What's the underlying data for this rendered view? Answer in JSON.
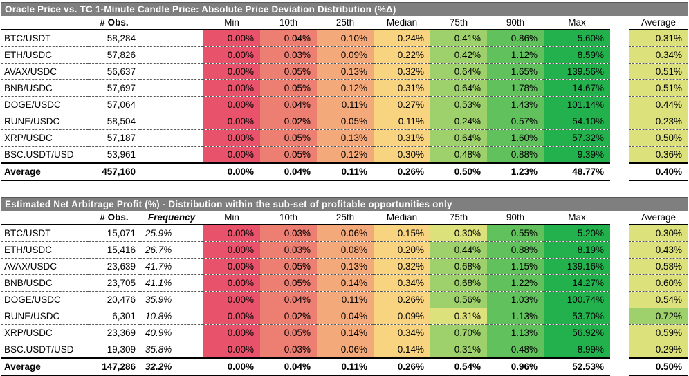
{
  "colors": {
    "title_bg": "#7F7F7F",
    "title_fg": "#FFFFFF",
    "scale_low": "#E8536B",
    "scale_mid": "#FBE983",
    "scale_high": "#23B14E"
  },
  "tables": [
    {
      "title": "Oracle Price vs. TC 1-Minute Candle Price: Absolute Price Deviation Distribution (%Δ)",
      "headers": {
        "obs": "# Obs.",
        "freq": "",
        "min": "Min",
        "p10": "10th",
        "p25": "25th",
        "median": "Median",
        "p75": "75th",
        "p90": "90th",
        "max": "Max",
        "avg": "Average"
      },
      "rows": [
        {
          "label": "BTC/USDT",
          "obs": "58,284",
          "freq": "",
          "values": [
            "0.00%",
            "0.04%",
            "0.10%",
            "0.24%",
            "0.41%",
            "0.86%",
            "5.60%",
            "0.31%"
          ]
        },
        {
          "label": "ETH/USDC",
          "obs": "57,826",
          "freq": "",
          "values": [
            "0.00%",
            "0.03%",
            "0.09%",
            "0.22%",
            "0.42%",
            "1.12%",
            "8.59%",
            "0.34%"
          ]
        },
        {
          "label": "AVAX/USDC",
          "obs": "56,637",
          "freq": "",
          "values": [
            "0.00%",
            "0.05%",
            "0.13%",
            "0.32%",
            "0.64%",
            "1.65%",
            "139.56%",
            "0.51%"
          ]
        },
        {
          "label": "BNB/USDC",
          "obs": "57,697",
          "freq": "",
          "values": [
            "0.00%",
            "0.05%",
            "0.12%",
            "0.31%",
            "0.64%",
            "1.78%",
            "14.67%",
            "0.51%"
          ]
        },
        {
          "label": "DOGE/USDC",
          "obs": "57,064",
          "freq": "",
          "values": [
            "0.00%",
            "0.04%",
            "0.11%",
            "0.27%",
            "0.53%",
            "1.43%",
            "101.14%",
            "0.44%"
          ]
        },
        {
          "label": "RUNE/USDC",
          "obs": "58,504",
          "freq": "",
          "values": [
            "0.00%",
            "0.02%",
            "0.05%",
            "0.11%",
            "0.24%",
            "0.57%",
            "54.10%",
            "0.23%"
          ]
        },
        {
          "label": "XRP/USDC",
          "obs": "57,187",
          "freq": "",
          "values": [
            "0.00%",
            "0.05%",
            "0.13%",
            "0.31%",
            "0.64%",
            "1.60%",
            "57.32%",
            "0.50%"
          ]
        },
        {
          "label": "BSC.USDT/USD",
          "obs": "53,961",
          "freq": "",
          "values": [
            "0.00%",
            "0.05%",
            "0.12%",
            "0.30%",
            "0.48%",
            "0.88%",
            "9.39%",
            "0.36%"
          ]
        }
      ],
      "total": {
        "label": "Average",
        "obs": "457,160",
        "freq": "",
        "values": [
          "0.00%",
          "0.04%",
          "0.11%",
          "0.26%",
          "0.50%",
          "1.23%",
          "48.77%",
          "0.40%"
        ]
      }
    },
    {
      "title": "Estimated Net Arbitrage Profit (%) - Distribution within the sub-set of profitable opportunities only",
      "headers": {
        "obs": "# Obs.",
        "freq": "Frequency",
        "min": "Min",
        "p10": "10th",
        "p25": "25th",
        "median": "Median",
        "p75": "75th",
        "p90": "90th",
        "max": "Max",
        "avg": "Average"
      },
      "rows": [
        {
          "label": "BTC/USDT",
          "obs": "15,071",
          "freq": "25.9%",
          "values": [
            "0.00%",
            "0.03%",
            "0.06%",
            "0.15%",
            "0.30%",
            "0.55%",
            "5.20%",
            "0.30%"
          ]
        },
        {
          "label": "ETH/USDC",
          "obs": "15,416",
          "freq": "26.7%",
          "values": [
            "0.00%",
            "0.03%",
            "0.08%",
            "0.20%",
            "0.44%",
            "0.88%",
            "8.19%",
            "0.43%"
          ]
        },
        {
          "label": "AVAX/USDC",
          "obs": "23,639",
          "freq": "41.7%",
          "values": [
            "0.00%",
            "0.05%",
            "0.13%",
            "0.32%",
            "0.68%",
            "1.15%",
            "139.16%",
            "0.58%"
          ]
        },
        {
          "label": "BNB/USDC",
          "obs": "23,705",
          "freq": "41.1%",
          "values": [
            "0.00%",
            "0.05%",
            "0.14%",
            "0.34%",
            "0.68%",
            "1.22%",
            "14.27%",
            "0.60%"
          ]
        },
        {
          "label": "DOGE/USDC",
          "obs": "20,476",
          "freq": "35.9%",
          "values": [
            "0.00%",
            "0.04%",
            "0.11%",
            "0.26%",
            "0.56%",
            "1.03%",
            "100.74%",
            "0.54%"
          ]
        },
        {
          "label": "RUNE/USDC",
          "obs": "6,301",
          "freq": "10.8%",
          "values": [
            "0.00%",
            "0.02%",
            "0.04%",
            "0.09%",
            "0.31%",
            "1.13%",
            "53.70%",
            "0.72%"
          ]
        },
        {
          "label": "XRP/USDC",
          "obs": "23,369",
          "freq": "40.9%",
          "values": [
            "0.00%",
            "0.05%",
            "0.14%",
            "0.34%",
            "0.70%",
            "1.13%",
            "56.92%",
            "0.59%"
          ]
        },
        {
          "label": "BSC.USDT/USD",
          "obs": "19,309",
          "freq": "35.8%",
          "values": [
            "0.00%",
            "0.03%",
            "0.06%",
            "0.14%",
            "0.31%",
            "0.48%",
            "8.99%",
            "0.29%"
          ]
        }
      ],
      "total": {
        "label": "Average",
        "obs": "147,286",
        "freq": "32.2%",
        "values": [
          "0.00%",
          "0.04%",
          "0.11%",
          "0.26%",
          "0.54%",
          "0.96%",
          "52.53%",
          "0.50%"
        ]
      }
    }
  ]
}
